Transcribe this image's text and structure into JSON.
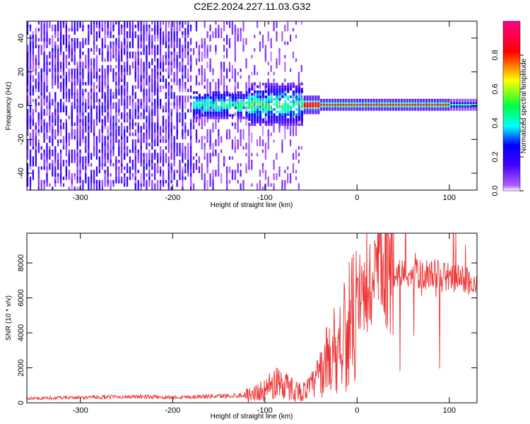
{
  "title": "C2E2.2024.227.11.03.G32",
  "chart_data": [
    {
      "type": "heatmap",
      "xlabel": "Height of straight line (km)",
      "ylabel": "Frequency (Hz)",
      "xlim": [
        -358,
        130
      ],
      "ylim": [
        -50,
        50
      ],
      "xticks": [
        -300,
        -200,
        -100,
        0,
        100
      ],
      "yticks": [
        -40,
        -20,
        0,
        20,
        40
      ],
      "colorbar": {
        "label": "Normalized spectral amplitude",
        "range": [
          0,
          1
        ],
        "ticks": [
          0.0,
          0.2,
          0.4,
          0.6,
          0.8
        ],
        "colormap": [
          "#ffffff",
          "#b060ff",
          "#4400ff",
          "#0000ff",
          "#00ffff",
          "#00ff40",
          "#ffff00",
          "#ff0000",
          "#ff0088"
        ]
      },
      "regions": [
        {
          "x": [
            -358,
            -180
          ],
          "spread_hz": 50,
          "amplitude": 0.15
        },
        {
          "x": [
            -180,
            -60
          ],
          "spread_hz": 12,
          "amplitude": 0.35
        },
        {
          "x": [
            -60,
            130
          ],
          "spread_hz": 2,
          "amplitude": 0.9
        }
      ]
    },
    {
      "type": "line",
      "xlabel": "Height of straight line (km)",
      "ylabel": "SNR (10 * v/v)",
      "xlim": [
        -358,
        130
      ],
      "ylim": [
        0,
        9700
      ],
      "xticks": [
        -300,
        -200,
        -100,
        0,
        100
      ],
      "yticks": [
        0,
        2000,
        4000,
        6000,
        8000
      ],
      "color": "#ee3333",
      "series": [
        {
          "x": [
            -358,
            -300,
            -250,
            -200,
            -150,
            -120,
            -100,
            -85,
            -75,
            -60,
            -50,
            -40,
            -30,
            -20,
            -10,
            0,
            10,
            20,
            30,
            40,
            50,
            60,
            70,
            80,
            90,
            100,
            110,
            120,
            130
          ],
          "values": [
            250,
            300,
            350,
            320,
            380,
            450,
            700,
            1300,
            900,
            600,
            900,
            1700,
            2700,
            3500,
            4300,
            5000,
            6200,
            7300,
            7400,
            7500,
            7400,
            7400,
            7300,
            7400,
            7300,
            7200,
            7100,
            7000,
            6600
          ]
        }
      ]
    }
  ]
}
